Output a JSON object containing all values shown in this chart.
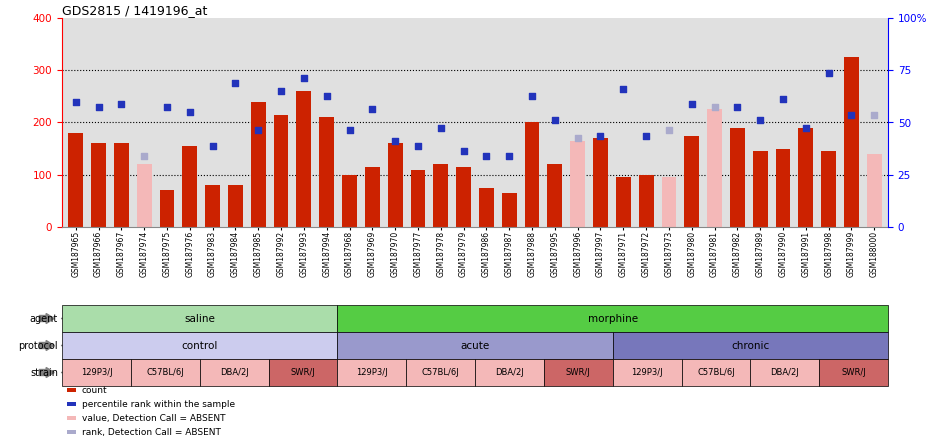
{
  "title": "GDS2815 / 1419196_at",
  "samples": [
    "GSM187965",
    "GSM187966",
    "GSM187967",
    "GSM187974",
    "GSM187975",
    "GSM187976",
    "GSM187983",
    "GSM187984",
    "GSM187985",
    "GSM187992",
    "GSM187993",
    "GSM187994",
    "GSM187968",
    "GSM187969",
    "GSM187970",
    "GSM187977",
    "GSM187978",
    "GSM187979",
    "GSM187986",
    "GSM187987",
    "GSM187988",
    "GSM187995",
    "GSM187996",
    "GSM187997",
    "GSM187971",
    "GSM187972",
    "GSM187973",
    "GSM187980",
    "GSM187981",
    "GSM187982",
    "GSM187989",
    "GSM187990",
    "GSM187991",
    "GSM187998",
    "GSM187999",
    "GSM188000"
  ],
  "bar_values": [
    180,
    160,
    160,
    120,
    70,
    155,
    80,
    80,
    240,
    215,
    260,
    210,
    100,
    115,
    160,
    110,
    120,
    115,
    75,
    65,
    200,
    120,
    165,
    170,
    95,
    100,
    95,
    175,
    225,
    190,
    145,
    150,
    190,
    145,
    325,
    140
  ],
  "absent_flags": [
    false,
    false,
    false,
    true,
    false,
    false,
    false,
    false,
    false,
    false,
    false,
    false,
    false,
    false,
    false,
    false,
    false,
    false,
    false,
    false,
    false,
    false,
    true,
    false,
    false,
    false,
    true,
    false,
    true,
    false,
    false,
    false,
    false,
    false,
    false,
    true
  ],
  "percentile_values": [
    240,
    230,
    235,
    135,
    230,
    220,
    155,
    275,
    185,
    260,
    285,
    250,
    185,
    225,
    165,
    155,
    190,
    145,
    135,
    135,
    250,
    205,
    170,
    175,
    265,
    175,
    185,
    235,
    230,
    230,
    205,
    245,
    190,
    295,
    215,
    215
  ],
  "absent_rank_flags": [
    false,
    false,
    false,
    true,
    false,
    false,
    false,
    false,
    false,
    false,
    false,
    false,
    false,
    false,
    false,
    false,
    false,
    false,
    false,
    false,
    false,
    false,
    true,
    false,
    false,
    false,
    true,
    false,
    true,
    false,
    false,
    false,
    false,
    false,
    false,
    true
  ],
  "bar_color_normal": "#cc2200",
  "bar_color_absent": "#f4b8b8",
  "dot_color_normal": "#2233bb",
  "dot_color_absent": "#aaaacc",
  "bg_color": "#e0e0e0",
  "agent_regions": [
    {
      "label": "saline",
      "start": 0,
      "end": 12,
      "color": "#aaddaa"
    },
    {
      "label": "morphine",
      "start": 12,
      "end": 36,
      "color": "#55cc44"
    }
  ],
  "protocol_regions": [
    {
      "label": "control",
      "start": 0,
      "end": 12,
      "color": "#ccccee"
    },
    {
      "label": "acute",
      "start": 12,
      "end": 24,
      "color": "#9999cc"
    },
    {
      "label": "chronic",
      "start": 24,
      "end": 36,
      "color": "#7777bb"
    }
  ],
  "strain_regions": [
    {
      "label": "129P3/J",
      "start": 0,
      "end": 3,
      "color": "#f4b8b8"
    },
    {
      "label": "C57BL/6J",
      "start": 3,
      "end": 6,
      "color": "#f4b8b8"
    },
    {
      "label": "DBA/2J",
      "start": 6,
      "end": 9,
      "color": "#f4b8b8"
    },
    {
      "label": "SWR/J",
      "start": 9,
      "end": 12,
      "color": "#cc6666"
    },
    {
      "label": "129P3/J",
      "start": 12,
      "end": 15,
      "color": "#f4b8b8"
    },
    {
      "label": "C57BL/6J",
      "start": 15,
      "end": 18,
      "color": "#f4b8b8"
    },
    {
      "label": "DBA/2J",
      "start": 18,
      "end": 21,
      "color": "#f4b8b8"
    },
    {
      "label": "SWR/J",
      "start": 21,
      "end": 24,
      "color": "#cc6666"
    },
    {
      "label": "129P3/J",
      "start": 24,
      "end": 27,
      "color": "#f4b8b8"
    },
    {
      "label": "C57BL/6J",
      "start": 27,
      "end": 30,
      "color": "#f4b8b8"
    },
    {
      "label": "DBA/2J",
      "start": 30,
      "end": 33,
      "color": "#f4b8b8"
    },
    {
      "label": "SWR/J",
      "start": 33,
      "end": 36,
      "color": "#cc6666"
    }
  ],
  "legend_items": [
    {
      "label": "count",
      "color": "#cc2200"
    },
    {
      "label": "percentile rank within the sample",
      "color": "#2233bb"
    },
    {
      "label": "value, Detection Call = ABSENT",
      "color": "#f4b8b8"
    },
    {
      "label": "rank, Detection Call = ABSENT",
      "color": "#aaaacc"
    }
  ],
  "row_labels": [
    {
      "text": "agent",
      "arrow": true
    },
    {
      "text": "protocol",
      "arrow": true
    },
    {
      "text": "strain",
      "arrow": true
    }
  ],
  "left_yticks": [
    0,
    100,
    200,
    300,
    400
  ],
  "right_yticks": [
    0,
    25,
    50,
    75,
    100
  ],
  "right_yticklabels": [
    "0",
    "25",
    "50",
    "75",
    "100%"
  ],
  "grid_lines": [
    100,
    200,
    300
  ]
}
